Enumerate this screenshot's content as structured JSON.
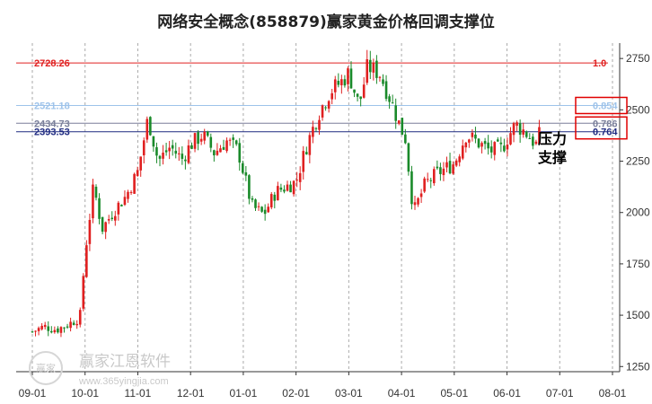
{
  "chart_data": {
    "type": "candlestick",
    "title": "网络安全概念(858879)赢家黄金价格回调支撑位",
    "y_range": [
      1225,
      2825
    ],
    "y_ticks": [
      "2750",
      "2500",
      "2250",
      "2000",
      "1750",
      "1500",
      "1250"
    ],
    "x_ticks": [
      "09-01",
      "10-01",
      "11-01",
      "12-01",
      "01-01",
      "02-01",
      "03-01",
      "04-01",
      "05-01",
      "06-01",
      "07-01",
      "08-01"
    ],
    "grid": "vertical dashed",
    "colors": {
      "up": "#e02020",
      "down": "#1a8a2a"
    },
    "levels": [
      {
        "price": 2728.26,
        "label": "2728.26",
        "ratio": "1.0",
        "color": "#e02020"
      },
      {
        "price": 2521.18,
        "label": "2521.18",
        "ratio": "0.854",
        "color": "#9ec3ea"
      },
      {
        "price": 2434.73,
        "label": "2434.73",
        "ratio": "0.786",
        "color": "#7a7f9a"
      },
      {
        "price": 2393.53,
        "label": "2393.53",
        "ratio": "0.764",
        "color": "#1e2a80"
      }
    ],
    "annotations": {
      "resistance": "压力",
      "support": "支撑"
    },
    "price_path": [
      [
        "09-01",
        1420
      ],
      [
        "09-08",
        1445
      ],
      [
        "09-15",
        1430
      ],
      [
        "09-22",
        1455
      ],
      [
        "09-29",
        1490
      ],
      [
        "10-01",
        1800
      ],
      [
        "10-06",
        2130
      ],
      [
        "10-11",
        1920
      ],
      [
        "10-18",
        2010
      ],
      [
        "10-25",
        2080
      ],
      [
        "11-01",
        2200
      ],
      [
        "11-07",
        2460
      ],
      [
        "11-13",
        2250
      ],
      [
        "11-20",
        2320
      ],
      [
        "11-27",
        2260
      ],
      [
        "12-01",
        2330
      ],
      [
        "12-08",
        2380
      ],
      [
        "12-15",
        2290
      ],
      [
        "12-22",
        2350
      ],
      [
        "12-29",
        2300
      ],
      [
        "01-01",
        2200
      ],
      [
        "01-06",
        2030
      ],
      [
        "01-13",
        1990
      ],
      [
        "01-20",
        2100
      ],
      [
        "01-27",
        2130
      ],
      [
        "02-01",
        2150
      ],
      [
        "02-07",
        2320
      ],
      [
        "02-14",
        2480
      ],
      [
        "02-21",
        2590
      ],
      [
        "02-28",
        2640
      ],
      [
        "03-01",
        2680
      ],
      [
        "03-07",
        2520
      ],
      [
        "03-12",
        2710
      ],
      [
        "03-19",
        2680
      ],
      [
        "03-26",
        2540
      ],
      [
        "04-01",
        2400
      ],
      [
        "04-03",
        2380
      ],
      [
        "04-08",
        2000
      ],
      [
        "04-15",
        2140
      ],
      [
        "04-22",
        2190
      ],
      [
        "05-01",
        2240
      ],
      [
        "05-08",
        2380
      ],
      [
        "05-15",
        2340
      ],
      [
        "05-22",
        2300
      ],
      [
        "05-29",
        2310
      ],
      [
        "06-01",
        2360
      ],
      [
        "06-06",
        2430
      ],
      [
        "06-12",
        2390
      ],
      [
        "06-18",
        2330
      ],
      [
        "06-21",
        2400
      ]
    ]
  },
  "watermark": {
    "logo_text": "赢家",
    "brand": "赢家江恩软件",
    "url": "www.365yingjia.com"
  }
}
